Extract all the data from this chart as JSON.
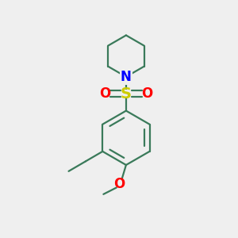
{
  "background_color": "#efefef",
  "bond_color": "#3a7a5a",
  "N_color": "#0000ff",
  "S_color": "#cccc00",
  "O_color": "#ff0000",
  "figsize": [
    3.0,
    3.0
  ],
  "dpi": 100,
  "xlim": [
    0,
    10
  ],
  "ylim": [
    0,
    10
  ]
}
